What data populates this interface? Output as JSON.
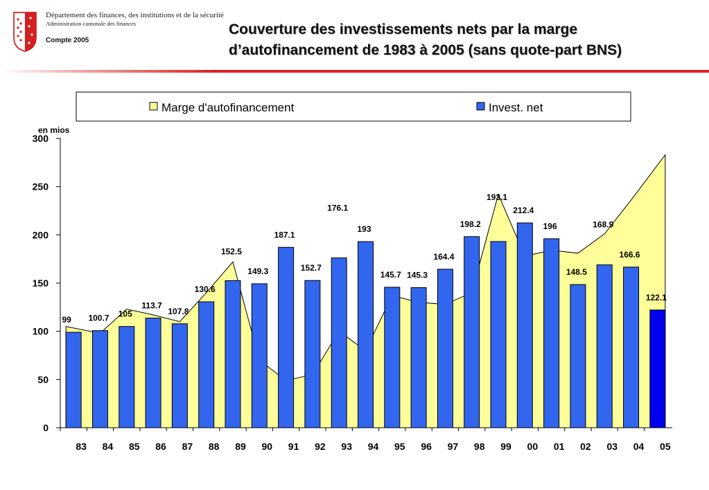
{
  "header": {
    "department_line1": "Département des finances, des institutions et de la sécurité",
    "department_line2": "Administration cantonale des finances",
    "report": "Compte 2005",
    "title_line1": "Couverture des investissements nets par la marge",
    "title_line2": "d’autofinancement  de 1983 à 2005 (sans quote-part BNS)"
  },
  "colors": {
    "area_fill": "#ffff99",
    "bar_fill": "#3366ee",
    "bar_last_fill": "#0000ee",
    "rule": "#e02020"
  },
  "icons": {
    "logo": "valais-canton-shield"
  },
  "chart_data": {
    "type": "bar",
    "ylabel": "en mios",
    "ylim": [
      0,
      300
    ],
    "yticks": [
      0,
      50,
      100,
      150,
      200,
      250,
      300
    ],
    "grid": false,
    "legend_position": "top",
    "categories": [
      "83",
      "84",
      "85",
      "86",
      "87",
      "88",
      "89",
      "90",
      "91",
      "92",
      "93",
      "94",
      "95",
      "96",
      "97",
      "98",
      "99",
      "00",
      "01",
      "02",
      "03",
      "04",
      "05"
    ],
    "series": [
      {
        "name": "Marge d'autofinancement",
        "kind": "area",
        "values": [
          105,
          98,
          123,
          117,
          110,
          140,
          172,
          70,
          49,
          55,
          100,
          80,
          137,
          130,
          128,
          140,
          242,
          178,
          184,
          181,
          201,
          236,
          283
        ]
      },
      {
        "name": "Invest. net",
        "kind": "bar",
        "values": [
          99,
          100.7,
          105,
          113.7,
          107.8,
          130.6,
          152.5,
          149.3,
          187.1,
          152.7,
          176.1,
          193,
          145.7,
          145.3,
          164.4,
          198.2,
          193.1,
          212.4,
          196,
          148.5,
          168.9,
          166.6,
          122.1
        ],
        "labels": [
          "99",
          "100.7",
          "105",
          "113.7",
          "107.8",
          "130.6",
          "152.5",
          "149.3",
          "187.1",
          "152.7",
          "176.1",
          "193",
          "145.7",
          "145.3",
          "164.4",
          "198.2",
          "193.1",
          "212.4",
          "196",
          "148.5",
          "168.9",
          "166.6",
          "122.1"
        ]
      }
    ]
  }
}
